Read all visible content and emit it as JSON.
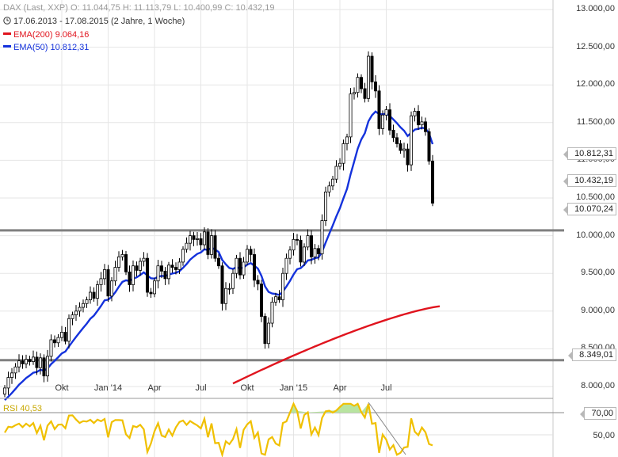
{
  "header": {
    "symbol": "DAX (Last, XXP)",
    "ohlc": "O: 11.044,75  H: 11.113,79  L: 10.400,99  C: 10.432,19",
    "period": "17.06.2013 - 17.08.2015 (2 Jahre, 1 Woche)",
    "ema200_label": "EMA(200)",
    "ema200_value": "9.064,16",
    "ema50_label": "EMA(50)",
    "ema50_value": "10.812,31",
    "clock_icon": "clock-icon"
  },
  "colors": {
    "candle": "#000000",
    "ema200": "#e0141e",
    "ema50": "#1432dc",
    "rsi": "#f0c000",
    "rsi_fill": "#b8e4a0",
    "hline": "#808080",
    "grid": "#e6e6e6"
  },
  "price_boxes": [
    {
      "value": 10812.31,
      "text": "10.812,31"
    },
    {
      "value": 10432.19,
      "text": "10.432,19"
    },
    {
      "value": 10070.24,
      "text": "10.070,24"
    },
    {
      "value": 8349.01,
      "text": "8.349,01"
    }
  ],
  "rsi": {
    "label": "RSI",
    "value": "40,53",
    "levels": [
      "70,00",
      "50,00"
    ]
  },
  "chart_data": {
    "type": "candlestick",
    "title": "DAX (Last, XXP)",
    "ylim": [
      7900,
      13000
    ],
    "y_ticks": [
      {
        "v": 13000,
        "t": "13.000,00"
      },
      {
        "v": 12500,
        "t": "12.500,00"
      },
      {
        "v": 12000,
        "t": "12.000,00"
      },
      {
        "v": 11500,
        "t": "11.500,00"
      },
      {
        "v": 11000,
        "t": "11.000,00"
      },
      {
        "v": 10500,
        "t": "10.500,00"
      },
      {
        "v": 10000,
        "t": "10.000,00"
      },
      {
        "v": 9500,
        "t": "9.500,00"
      },
      {
        "v": 9000,
        "t": "9.000,00"
      },
      {
        "v": 8500,
        "t": "8.500,00"
      },
      {
        "v": 8000,
        "t": "8.000,00"
      }
    ],
    "x_ticks": [
      {
        "w": 16,
        "t": "Okt"
      },
      {
        "w": 29,
        "t": "Jan '14"
      },
      {
        "w": 42,
        "t": "Apr"
      },
      {
        "w": 55,
        "t": "Jul"
      },
      {
        "w": 68,
        "t": "Okt"
      },
      {
        "w": 81,
        "t": "Jan '15"
      },
      {
        "w": 94,
        "t": "Apr"
      },
      {
        "w": 107,
        "t": "Jul"
      }
    ],
    "horizontal_lines": [
      10070.24,
      8349.01
    ],
    "close": [
      7980,
      8120,
      8180,
      8260,
      8340,
      8300,
      8360,
      8330,
      8390,
      8250,
      8380,
      8140,
      8400,
      8620,
      8580,
      8650,
      8720,
      8600,
      8900,
      8950,
      9000,
      9050,
      9100,
      9150,
      9250,
      9170,
      9350,
      9430,
      9550,
      9200,
      9400,
      9580,
      9720,
      9750,
      9520,
      9350,
      9600,
      9540,
      9660,
      9700,
      9250,
      9230,
      9400,
      9600,
      9530,
      9430,
      9610,
      9580,
      9550,
      9650,
      9820,
      9900,
      10000,
      9950,
      9960,
      9880,
      10050,
      9750,
      10000,
      9700,
      9600,
      9100,
      9300,
      9300,
      9500,
      9700,
      9480,
      9650,
      9820,
      9750,
      9410,
      9360,
      8930,
      8570,
      8840,
      9120,
      9190,
      9150,
      9500,
      9700,
      9810,
      9950,
      9940,
      9650,
      9850,
      10000,
      9720,
      9830,
      9760,
      10200,
      10580,
      10660,
      10750,
      10920,
      10960,
      11220,
      11310,
      11880,
      11900,
      12100,
      11950,
      11820,
      12380,
      12040,
      11920,
      11420,
      11600,
      11670,
      11400,
      11300,
      11220,
      11130,
      11150,
      10940,
      11590,
      11650,
      11470,
      11510,
      11380,
      10990,
      10432.19
    ],
    "series": [
      {
        "name": "EMA(200)",
        "start": [
          64,
          8040
        ],
        "end": [
          122,
          9064.16
        ]
      },
      {
        "name": "EMA(50)",
        "start": [
          0,
          7790
        ],
        "end": [
          122,
          10812.31
        ]
      },
      {
        "name": "RSI",
        "last": 40.53
      }
    ]
  }
}
